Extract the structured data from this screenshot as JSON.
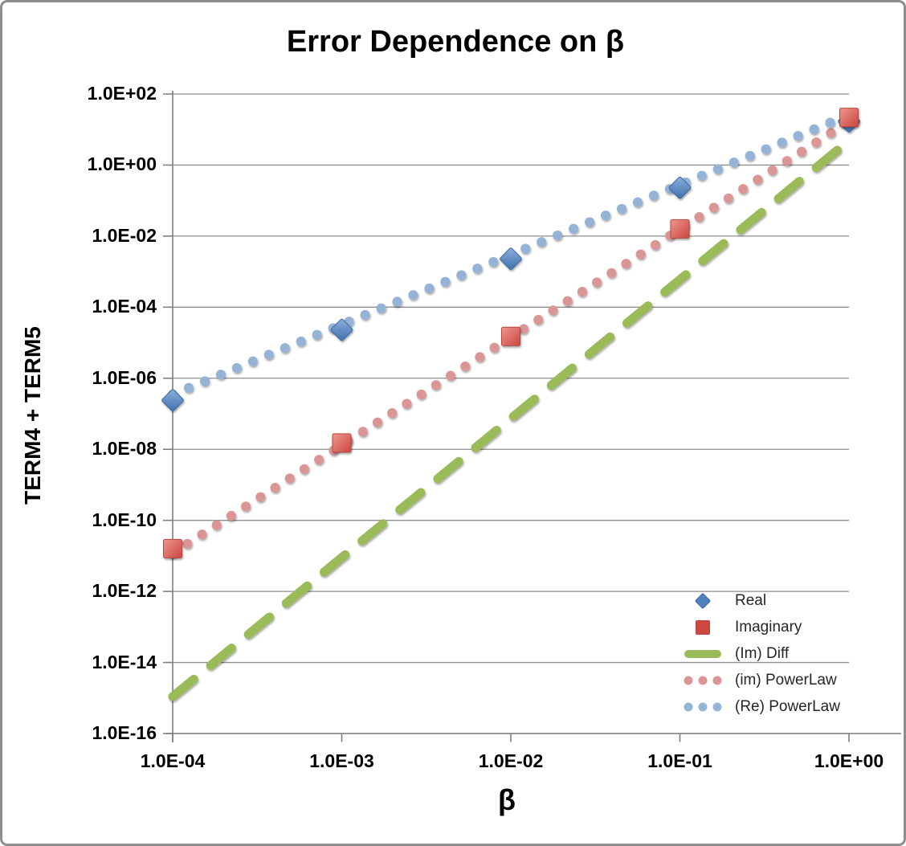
{
  "chart_data": {
    "type": "scatter",
    "title": "Error Dependence on β",
    "xlabel": "β",
    "ylabel": "TERM4 + TERM5",
    "x_scale": "log",
    "y_scale": "log",
    "xlim": [
      0.0001,
      1.0
    ],
    "ylim": [
      1e-16,
      100.0
    ],
    "x_ticks": [
      "1.0E-04",
      "1.0E-03",
      "1.0E-02",
      "1.0E-01",
      "1.0E+00"
    ],
    "y_ticks": [
      "1.0E+02",
      "1.0E+00",
      "1.0E-02",
      "1.0E-04",
      "1.0E-06",
      "1.0E-08",
      "1.0E-10",
      "1.0E-12",
      "1.0E-14",
      "1.0E-16"
    ],
    "grid": "horizontal",
    "legend_position": "inside bottom-right",
    "series": [
      {
        "name": "Real",
        "kind": "scatter",
        "marker": "diamond",
        "color": "#4f81bd",
        "x": [
          0.0001,
          0.001,
          0.01,
          0.1,
          1
        ],
        "y": [
          2.4e-07,
          2.3e-05,
          0.0023,
          0.23,
          17
        ]
      },
      {
        "name": "Imaginary",
        "kind": "scatter",
        "marker": "square",
        "color": "#cd4840",
        "x": [
          0.0001,
          0.001,
          0.01,
          0.1,
          1
        ],
        "y": [
          1.6e-11,
          1.5e-08,
          1.5e-05,
          0.016,
          22
        ]
      },
      {
        "name": "(Im) Diff",
        "kind": "line",
        "style": "dashed",
        "color": "#9bbb59",
        "approx_slope": 4,
        "x": [
          0.0001,
          1
        ],
        "y": [
          1.1e-15,
          4.9
        ]
      },
      {
        "name": "(im) PowerLaw",
        "kind": "line",
        "style": "dotted",
        "color": "#d99694",
        "approx_slope": 3,
        "x": [
          0.0001,
          1
        ],
        "y": [
          1.2e-11,
          17
        ]
      },
      {
        "name": "(Re) PowerLaw",
        "kind": "line",
        "style": "dotted",
        "color": "#95b3d7",
        "approx_slope": 2,
        "x": [
          0.0001,
          1
        ],
        "y": [
          3.5e-07,
          26
        ]
      }
    ]
  }
}
